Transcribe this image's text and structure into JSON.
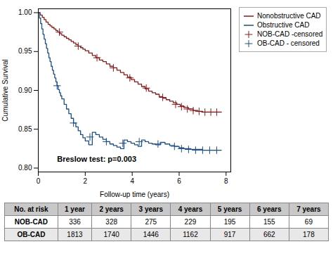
{
  "chart_data": {
    "type": "line",
    "xlabel": "Follow-up time (years)",
    "ylabel": "Cumulative Survival",
    "xlim": [
      0,
      8.2
    ],
    "ylim": [
      0.795,
      1.005
    ],
    "xticks": [
      0,
      2,
      4,
      6,
      8
    ],
    "yticks": [
      {
        "value": 0.8,
        "label": "0.80"
      },
      {
        "value": 0.85,
        "label": "0.85"
      },
      {
        "value": 0.9,
        "label": "0.90"
      },
      {
        "value": 0.95,
        "label": "0.95"
      },
      {
        "value": 1.0,
        "label": "1.00"
      }
    ],
    "legend": "right",
    "annotations": [
      {
        "text": "Breslow test: p=0.003",
        "x": 0.8,
        "y": 0.808
      }
    ],
    "series": [
      {
        "name": "Nonobstructive CAD",
        "type": "step",
        "color": "#8B1A1A",
        "x": [
          0.0,
          0.08,
          0.17,
          0.25,
          0.33,
          0.42,
          0.5,
          0.58,
          0.67,
          0.75,
          0.83,
          0.92,
          1.0,
          1.1,
          1.2,
          1.3,
          1.4,
          1.5,
          1.6,
          1.7,
          1.8,
          1.9,
          2.0,
          2.15,
          2.3,
          2.45,
          2.6,
          2.75,
          2.9,
          3.05,
          3.2,
          3.35,
          3.5,
          3.65,
          3.8,
          3.95,
          4.1,
          4.25,
          4.4,
          4.55,
          4.7,
          4.85,
          5.0,
          5.15,
          5.3,
          5.45,
          5.6,
          5.75,
          5.9,
          6.05,
          6.2,
          6.4,
          6.6,
          6.8,
          7.0,
          7.2,
          7.5,
          7.8
        ],
        "values": [
          1.0,
          0.997,
          0.994,
          0.991,
          0.988,
          0.985,
          0.983,
          0.981,
          0.979,
          0.977,
          0.975,
          0.973,
          0.971,
          0.969,
          0.967,
          0.965,
          0.963,
          0.961,
          0.959,
          0.957,
          0.955,
          0.953,
          0.951,
          0.948,
          0.945,
          0.942,
          0.939,
          0.937,
          0.934,
          0.931,
          0.929,
          0.926,
          0.923,
          0.92,
          0.917,
          0.914,
          0.911,
          0.908,
          0.905,
          0.902,
          0.899,
          0.897,
          0.895,
          0.892,
          0.89,
          0.888,
          0.886,
          0.884,
          0.882,
          0.88,
          0.878,
          0.876,
          0.874,
          0.873,
          0.872,
          0.872,
          0.872,
          0.872
        ]
      },
      {
        "name": "Obstructive CAD",
        "type": "step",
        "color": "#1B4F8A",
        "x": [
          0.0,
          0.05,
          0.1,
          0.15,
          0.2,
          0.25,
          0.3,
          0.35,
          0.4,
          0.45,
          0.5,
          0.55,
          0.6,
          0.65,
          0.7,
          0.75,
          0.8,
          0.85,
          0.9,
          0.95,
          1.0,
          1.1,
          1.2,
          1.3,
          1.4,
          1.5,
          1.6,
          1.7,
          1.8,
          1.9,
          2.0,
          2.15,
          2.3,
          2.45,
          2.6,
          2.75,
          2.9,
          3.05,
          3.2,
          3.35,
          3.5,
          3.65,
          3.8,
          3.95,
          4.1,
          4.25,
          4.4,
          4.55,
          4.7,
          4.85,
          5.0,
          5.2,
          5.4,
          5.6,
          5.8,
          6.0,
          6.2,
          6.5,
          7.0,
          7.5,
          7.8
        ],
        "values": [
          1.0,
          0.993,
          0.986,
          0.979,
          0.972,
          0.966,
          0.96,
          0.954,
          0.948,
          0.942,
          0.937,
          0.931,
          0.926,
          0.921,
          0.916,
          0.911,
          0.906,
          0.901,
          0.897,
          0.893,
          0.889,
          0.882,
          0.876,
          0.87,
          0.864,
          0.858,
          0.853,
          0.848,
          0.843,
          0.839,
          0.835,
          0.83,
          0.846,
          0.843,
          0.84,
          0.837,
          0.834,
          0.831,
          0.829,
          0.827,
          0.825,
          0.836,
          0.834,
          0.832,
          0.83,
          0.828,
          0.836,
          0.834,
          0.832,
          0.831,
          0.83,
          0.833,
          0.831,
          0.829,
          0.828,
          0.826,
          0.825,
          0.824,
          0.823,
          0.823,
          0.823
        ]
      },
      {
        "name": "NOB-CAD -censored",
        "type": "scatter",
        "marker": "plus",
        "color": "#8B1A1A",
        "x": [
          0.9,
          1.7,
          2.5,
          3.2,
          3.9,
          4.6,
          5.3,
          5.85,
          6.1,
          6.35,
          6.6,
          6.85,
          7.1,
          7.35,
          7.6
        ],
        "values": [
          0.975,
          0.957,
          0.942,
          0.929,
          0.916,
          0.903,
          0.891,
          0.882,
          0.879,
          0.876,
          0.874,
          0.873,
          0.872,
          0.872,
          0.872
        ]
      },
      {
        "name": "OB-CAD - censored",
        "type": "scatter",
        "marker": "plus",
        "color": "#1B4F8A",
        "x": [
          0.8,
          1.5,
          2.2,
          2.9,
          3.6,
          4.3,
          5.1,
          5.8,
          6.1,
          6.4,
          6.7,
          7.0,
          7.3,
          7.6
        ],
        "values": [
          0.906,
          0.858,
          0.84,
          0.834,
          0.832,
          0.834,
          0.831,
          0.828,
          0.825,
          0.824,
          0.823,
          0.823,
          0.823,
          0.823
        ]
      }
    ],
    "table": {
      "columns": [
        "No. at risk",
        "1 year",
        "2 years",
        "3 years",
        "4 years",
        "5 years",
        "6 years",
        "7 years"
      ],
      "rows": [
        [
          "NOB-CAD",
          "336",
          "328",
          "275",
          "229",
          "195",
          "155",
          "69"
        ],
        [
          "OB-CAD",
          "1813",
          "1740",
          "1446",
          "1162",
          "917",
          "662",
          "178"
        ]
      ]
    }
  }
}
